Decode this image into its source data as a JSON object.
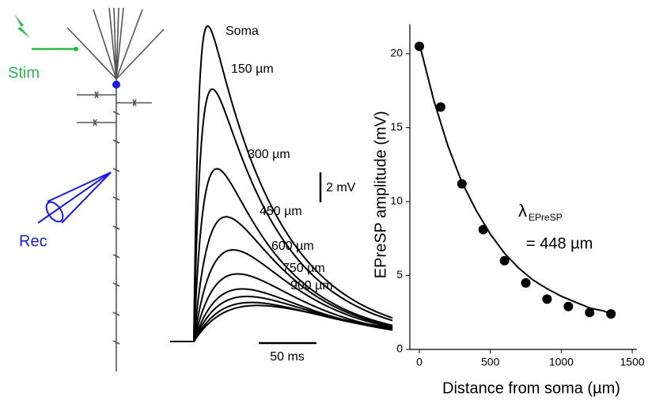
{
  "diagram": {
    "stim_label": "Stim",
    "rec_label": "Rec"
  },
  "traces_panel": {
    "scale_bars": {
      "voltage": {
        "value": 2,
        "label": "2 mV"
      },
      "time": {
        "value": 50,
        "label": "50 ms"
      }
    },
    "traces": [
      {
        "label": "Soma",
        "peak": 21.0,
        "time_to_peak": 12
      },
      {
        "label": "150 µm",
        "peak": 16.8,
        "time_to_peak": 16
      },
      {
        "label": "300 µm",
        "peak": 11.5,
        "time_to_peak": 20
      },
      {
        "label": "450 µm",
        "peak": 8.3,
        "time_to_peak": 28
      },
      {
        "label": "600 µm",
        "peak": 6.1,
        "time_to_peak": 34
      },
      {
        "label": "750 µm",
        "peak": 4.5,
        "time_to_peak": 38
      },
      {
        "label": "900 µm",
        "peak": 3.5,
        "time_to_peak": 42
      },
      {
        "label": null,
        "peak": 3.0,
        "time_to_peak": 46
      },
      {
        "label": null,
        "peak": 2.6,
        "time_to_peak": 50
      },
      {
        "label": null,
        "peak": 2.4,
        "time_to_peak": 55
      }
    ]
  },
  "chart_data": {
    "type": "scatter",
    "x_label": "Distance from soma (µm)",
    "y_label": "EPreSP amplitude (mV)",
    "x": [
      0,
      150,
      300,
      450,
      600,
      750,
      900,
      1050,
      1200,
      1350
    ],
    "values": [
      20.5,
      16.4,
      11.2,
      8.1,
      6.0,
      4.5,
      3.4,
      2.9,
      2.5,
      2.4
    ],
    "fit": {
      "x": [
        0,
        100,
        200,
        300,
        400,
        500,
        600,
        700,
        800,
        900,
        1000,
        1100,
        1200,
        1300,
        1350
      ],
      "values": [
        20.7,
        16.9,
        13.8,
        11.3,
        9.4,
        7.8,
        6.5,
        5.5,
        4.7,
        4.1,
        3.6,
        3.2,
        2.8,
        2.6,
        2.4
      ]
    },
    "annotation": {
      "symbol": "λ",
      "subscript": "EPreSP",
      "text": "= 448 µm"
    },
    "color": "#000000",
    "xlim": [
      -67,
      1533
    ],
    "ylim": [
      0,
      22
    ],
    "xticks": [
      0,
      500,
      1000,
      1500
    ],
    "yticks": [
      0,
      5,
      10,
      15,
      20
    ]
  }
}
